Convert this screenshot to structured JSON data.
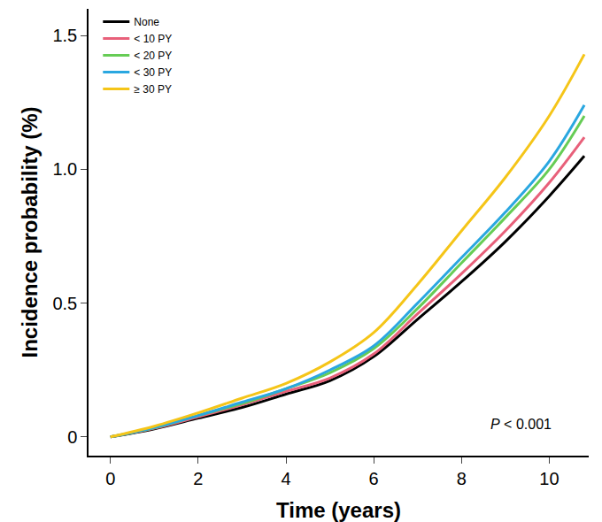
{
  "chart_data": {
    "type": "line",
    "x_label": "Time (years)",
    "y_label": "Incidence probability (%)",
    "annotation": "P < 0.001",
    "x": [
      0,
      1,
      2,
      3,
      4,
      5,
      6,
      7,
      8,
      9,
      10,
      10.8
    ],
    "series": [
      {
        "name": "None",
        "color": "#000000",
        "values": [
          0,
          0.03,
          0.07,
          0.11,
          0.16,
          0.21,
          0.3,
          0.44,
          0.58,
          0.73,
          0.9,
          1.05
        ]
      },
      {
        "name": "< 10 PY",
        "color": "#e8607a",
        "values": [
          0,
          0.032,
          0.075,
          0.12,
          0.17,
          0.22,
          0.31,
          0.46,
          0.61,
          0.77,
          0.95,
          1.12
        ]
      },
      {
        "name": "< 20 PY",
        "color": "#66cc55",
        "values": [
          0,
          0.034,
          0.08,
          0.125,
          0.18,
          0.24,
          0.33,
          0.48,
          0.65,
          0.82,
          1.0,
          1.2
        ]
      },
      {
        "name": "< 30 PY",
        "color": "#2aa7e0",
        "values": [
          0,
          0.035,
          0.08,
          0.13,
          0.18,
          0.25,
          0.34,
          0.5,
          0.67,
          0.84,
          1.03,
          1.24
        ]
      },
      {
        "name": "≥ 30 PY",
        "color": "#f5c518",
        "values": [
          0,
          0.04,
          0.09,
          0.145,
          0.2,
          0.28,
          0.39,
          0.57,
          0.77,
          0.97,
          1.2,
          1.43
        ]
      }
    ],
    "xlim": [
      -0.5,
      10.9
    ],
    "ylim": [
      -0.07,
      1.6
    ],
    "xticks": [
      0,
      2,
      4,
      6,
      8,
      10
    ],
    "yticks": [
      0,
      0.5,
      {
        "value": 1,
        "label": "1.0"
      },
      1.5
    ],
    "grid": false,
    "legend": "top-left"
  }
}
